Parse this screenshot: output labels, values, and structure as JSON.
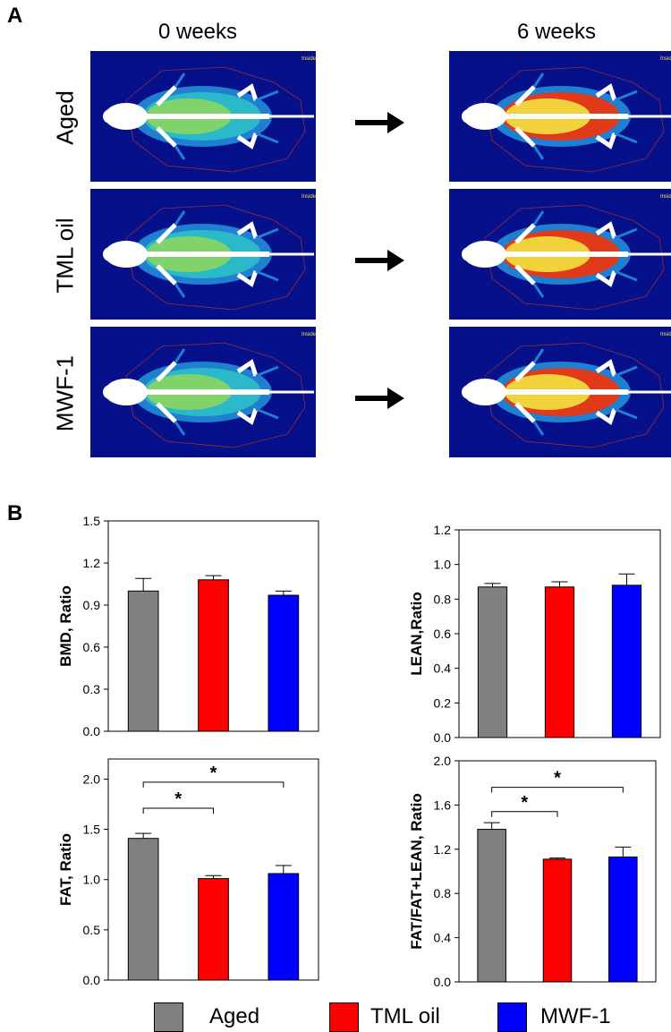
{
  "panels": {
    "a": "A",
    "b": "B"
  },
  "columns": {
    "left": "0 weeks",
    "right": "6 weeks"
  },
  "rows": [
    "Aged",
    "TML oil",
    "MWF-1"
  ],
  "scan_overlay": {
    "inside": "Inside"
  },
  "colors": {
    "scan_bg": "#05108a",
    "aged": "#808080",
    "tml": "#ff0000",
    "mwf": "#0000ff"
  },
  "legend": [
    {
      "label": "Aged",
      "color": "#808080"
    },
    {
      "label": "TML oil",
      "color": "#ff0000"
    },
    {
      "label": "MWF-1",
      "color": "#0000ff"
    }
  ],
  "chart_data": [
    {
      "type": "bar",
      "ylabel": "BMD, Ratio",
      "categories": [
        "Aged",
        "TML oil",
        "MWF-1"
      ],
      "values": [
        1.0,
        1.08,
        0.97
      ],
      "errors": [
        0.09,
        0.03,
        0.03
      ],
      "ylim": [
        0,
        1.5
      ],
      "yticks": [
        "0.0",
        "0.3",
        "0.6",
        "0.9",
        "1.2",
        "1.5"
      ],
      "significance": []
    },
    {
      "type": "bar",
      "ylabel": "LEAN,Ratio",
      "categories": [
        "Aged",
        "TML oil",
        "MWF-1"
      ],
      "values": [
        0.87,
        0.87,
        0.88
      ],
      "errors": [
        0.02,
        0.03,
        0.065
      ],
      "ylim": [
        0,
        1.2
      ],
      "yticks": [
        "0.0",
        "0.2",
        "0.4",
        "0.6",
        "0.8",
        "1.0",
        "1.2"
      ],
      "significance": []
    },
    {
      "type": "bar",
      "ylabel": "FAT, Ratio",
      "categories": [
        "Aged",
        "TML oil",
        "MWF-1"
      ],
      "values": [
        1.41,
        1.01,
        1.06
      ],
      "errors": [
        0.05,
        0.03,
        0.08
      ],
      "ylim": [
        0,
        2.2
      ],
      "yticks": [
        "0.0",
        "0.5",
        "1.0",
        "1.5",
        "2.0"
      ],
      "significance": [
        {
          "from": 0,
          "to": 1,
          "y": 1.71,
          "label": "*"
        },
        {
          "from": 0,
          "to": 2,
          "y": 1.97,
          "label": "*"
        }
      ]
    },
    {
      "type": "bar",
      "ylabel": "FAT/FAT+LEAN, Ratio",
      "categories": [
        "Aged",
        "TML oil",
        "MWF-1"
      ],
      "values": [
        1.38,
        1.11,
        1.13
      ],
      "errors": [
        0.06,
        0.01,
        0.09
      ],
      "ylim": [
        0,
        2.0
      ],
      "yticks": [
        "0.0",
        "0.4",
        "0.8",
        "1.2",
        "1.6",
        "2.0"
      ],
      "significance": [
        {
          "from": 0,
          "to": 1,
          "y": 1.54,
          "label": "*"
        },
        {
          "from": 0,
          "to": 2,
          "y": 1.76,
          "label": "*"
        }
      ]
    }
  ]
}
